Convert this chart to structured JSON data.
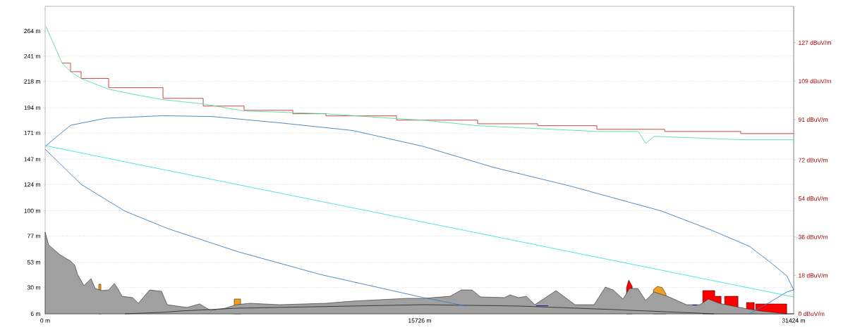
{
  "chart_data": {
    "type": "line",
    "xlim": [
      0,
      31424
    ],
    "xticks": [
      {
        "value": 0,
        "label": "0 m"
      },
      {
        "value": 15726,
        "label": "15726 m"
      },
      {
        "value": 31424,
        "label": "31424 m"
      }
    ],
    "ylim": [
      6,
      286.5
    ],
    "yticks": [
      {
        "value": 6,
        "label": "6 m"
      },
      {
        "value": 30,
        "label": "30 m"
      },
      {
        "value": 53,
        "label": "53 m"
      },
      {
        "value": 77,
        "label": "77 m"
      },
      {
        "value": 100,
        "label": "100 m"
      },
      {
        "value": 124,
        "label": "124 m"
      },
      {
        "value": 147,
        "label": "147 m"
      },
      {
        "value": 171,
        "label": "171 m"
      },
      {
        "value": 194,
        "label": "194 m"
      },
      {
        "value": 218,
        "label": "218 m"
      },
      {
        "value": 241,
        "label": "241 m"
      },
      {
        "value": 264,
        "label": "264 m"
      }
    ],
    "y2lim": [
      0,
      144
    ],
    "y2ticks": [
      {
        "value": 0,
        "label": "0 dBuV/m"
      },
      {
        "value": 18,
        "label": "18 dBuV/m"
      },
      {
        "value": 36,
        "label": "36 dBuV/m"
      },
      {
        "value": 54,
        "label": "54 dBuV/m"
      },
      {
        "value": 72,
        "label": "72 dBuV/m"
      },
      {
        "value": 91,
        "label": "91 dBuV/m"
      },
      {
        "value": 109,
        "label": "109 dBuV/m"
      },
      {
        "value": 127,
        "label": "127 dBuV/m"
      }
    ],
    "grid": "y",
    "series": [
      {
        "type": "area",
        "color": "#f0a020",
        "x": [
          2251,
          2340
        ],
        "values": [
          33.0,
          33.0
        ]
      },
      {
        "type": "area",
        "color": "#f0a020",
        "x": [
          7938,
          8205
        ],
        "values": [
          19.5,
          19.5
        ]
      },
      {
        "type": "area",
        "color": "#f0a020",
        "x": [
          25533,
          25700,
          25900,
          26066
        ],
        "values": [
          28,
          31,
          30,
          24
        ]
      },
      {
        "type": "area",
        "color": "#ff0000",
        "x": [
          24407,
          24500,
          24644
        ],
        "values": [
          30,
          36.8,
          31
        ]
      },
      {
        "type": "area",
        "color": "#ff0000",
        "x": [
          27606,
          28109,
          28109,
          28376,
          28376,
          28524,
          28524,
          29087,
          29087,
          29442,
          29442,
          29768,
          29768,
          29827,
          29827,
          31131
        ],
        "values": [
          27.2,
          27.2,
          22,
          22,
          14,
          14,
          22,
          22,
          10,
          10,
          16.3,
          16.3,
          8,
          8,
          15,
          15
        ]
      },
      {
        "type": "area",
        "color": "#a0a0a0",
        "x": [
          0,
          148,
          622,
          1066,
          1244,
          1363,
          1629,
          1925,
          2103,
          2370,
          2666,
          2903,
          3051,
          3228,
          3673,
          3910,
          4384,
          4887,
          5124,
          5953,
          6487,
          6931,
          7553,
          8027,
          8590,
          9834,
          11789,
          12914,
          15195,
          15876,
          17002,
          17476,
          17920,
          18275,
          19283,
          19519,
          19875,
          20201,
          20556,
          21178,
          21445,
          22245,
          23044,
          23518,
          23844,
          24259,
          24525,
          24881,
          25207,
          25562,
          26125,
          26925,
          27487,
          27843,
          28287,
          29324,
          30005,
          31131,
          31424
        ],
        "values": [
          80.4,
          68.9,
          59.9,
          54.1,
          50.3,
          41.9,
          31.7,
          38.1,
          29.1,
          27.2,
          27.8,
          33.6,
          29.1,
          22.0,
          20.8,
          15.6,
          27.8,
          26.5,
          14.3,
          11.8,
          15.0,
          9.2,
          11.1,
          14.3,
          15.6,
          14.3,
          15.6,
          17.6,
          20.1,
          20.1,
          22.0,
          27.8,
          27.8,
          21.4,
          20.8,
          23.3,
          20.8,
          22.0,
          14.3,
          23.3,
          27.2,
          14.3,
          14.3,
          30.4,
          27.8,
          19.5,
          29.1,
          29.1,
          18.2,
          25.9,
          22.0,
          14.3,
          14.3,
          19.5,
          15.6,
          11.1,
          8.6,
          6.0,
          6.0
        ]
      },
      {
        "color": "#303030",
        "x": [
          3347,
          4887,
          5686,
          8027,
          15876,
          19875,
          23844,
          28080
        ],
        "values": [
          6.0,
          7.3,
          8.6,
          11.1,
          14.3,
          13.1,
          9.9,
          6.0
        ]
      },
      {
        "color": "#0000a0",
        "x": [
          20615,
          21119
        ],
        "values": [
          13.3,
          13.3
        ]
      },
      {
        "color": "#0000a0",
        "x": [
          27180,
          27370
        ],
        "values": [
          14.0,
          14.0
        ]
      },
      {
        "color": "#3a80c0",
        "x": [
          0,
          1066,
          2547,
          4917,
          6990,
          9952,
          12914,
          15876,
          18838,
          22000,
          25888,
          27961,
          29561,
          30449,
          31131,
          31424
        ],
        "values": [
          158.7,
          178.0,
          184.4,
          186.7,
          186.0,
          180.0,
          173.2,
          158.7,
          139.5,
          122.8,
          99.7,
          82.4,
          67.6,
          52.9,
          40.7,
          27.8
        ]
      },
      {
        "color": "#3a80c0",
        "x": [
          0,
          1510,
          3347,
          5154,
          8116,
          11552,
          15876,
          17684,
          20438,
          25888,
          27724,
          29561,
          30449,
          31131,
          31424
        ],
        "values": [
          156.2,
          124.1,
          99.7,
          83.7,
          62.5,
          41.9,
          20.8,
          13.1,
          null,
          null,
          null,
          6.0,
          16.9,
          25.9,
          27.8
        ]
      },
      {
        "color": "#40e0e0",
        "x": [
          0,
          31424
        ],
        "values": [
          159.4,
          21.4
        ]
      },
      {
        "type": "step",
        "axis": "y2",
        "color": "#c0392b",
        "x": [
          711,
          1066,
          1511,
          2666,
          4947,
          6635,
          8353,
          10397,
          11789,
          14751,
          18157,
          20675,
          23162,
          26006,
          29205,
          31424
        ],
        "values": [
          117.4,
          113.4,
          110.2,
          105.9,
          100.9,
          97.3,
          95.3,
          93.7,
          92.7,
          90.7,
          89.0,
          88.1,
          86.4,
          85.4,
          84.4,
          84.4
        ]
      },
      {
        "axis": "y2",
        "color": "#50e0a0",
        "x": [
          30,
          385,
          711,
          1066,
          1511,
          2666,
          3791,
          4947,
          6635,
          8353,
          11789,
          14751,
          15876,
          18157,
          23162,
          24900,
          25207,
          25562,
          29324,
          31424
        ],
        "values": [
          134.6,
          125.6,
          117.4,
          113.4,
          110.2,
          105.2,
          102.6,
          100.3,
          98.3,
          95.0,
          93.7,
          91.4,
          90.7,
          88.1,
          85.4,
          85.4,
          79.8,
          83.1,
          81.5,
          81.5
        ]
      }
    ]
  }
}
